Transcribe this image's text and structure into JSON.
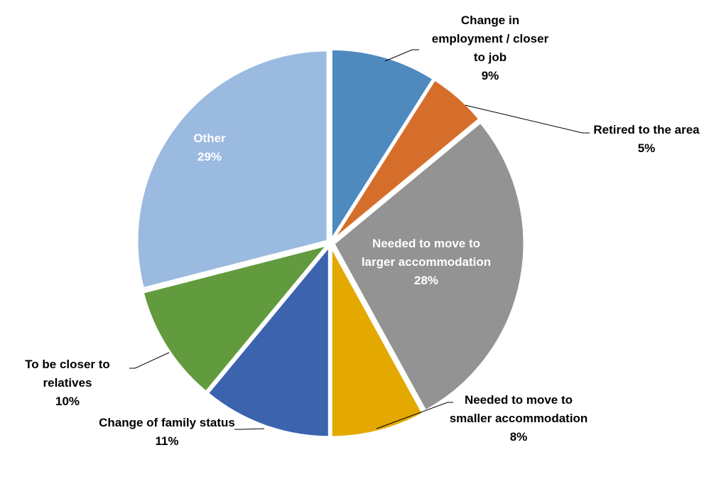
{
  "chart_data": {
    "type": "pie",
    "categories": [
      "Change in employment / closer to job",
      "Retired to the area",
      "Needed to move to larger accommodation",
      "Needed to move to smaller accommodation",
      "Change of family status",
      "To be closer to relatives",
      "Other"
    ],
    "values": [
      9,
      5,
      28,
      8,
      11,
      10,
      29
    ],
    "value_labels": [
      "9%",
      "5%",
      "28%",
      "8%",
      "11%",
      "10%",
      "29%"
    ],
    "colors": [
      "#4f8abf",
      "#d66e2b",
      "#939393",
      "#e3a900",
      "#3c63ae",
      "#629b3e",
      "#9bbae0"
    ]
  }
}
